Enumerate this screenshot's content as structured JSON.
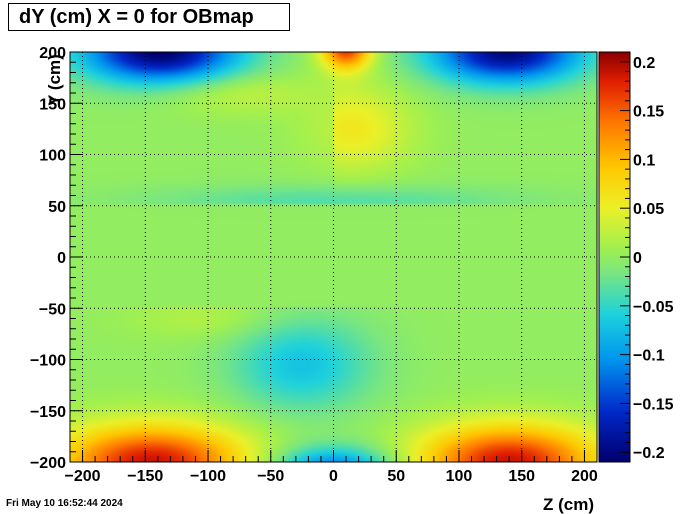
{
  "chart_data": {
    "type": "heatmap",
    "title": "dY (cm) X = 0 for OBmap",
    "xlabel": "Z (cm)",
    "ylabel": "Y (cm)",
    "xlim": [
      -210,
      210
    ],
    "ylim": [
      -200,
      200
    ],
    "x_ticks": [
      -200,
      -150,
      -100,
      -50,
      0,
      50,
      100,
      150,
      200
    ],
    "y_ticks": [
      -200,
      -150,
      -100,
      -50,
      0,
      50,
      100,
      150,
      200
    ],
    "zlim": [
      -0.21,
      0.21
    ],
    "z_ticks": [
      -0.2,
      -0.15,
      -0.1,
      -0.05,
      0,
      0.05,
      0.1,
      0.15,
      0.2
    ],
    "z_tick_labels": [
      "−0.2",
      "−0.15",
      "−0.1",
      "−0.05",
      "0",
      "0.05",
      "0.1",
      "0.15",
      "0.2"
    ],
    "x_tick_labels": [
      "−200",
      "−150",
      "−100",
      "−50",
      "0",
      "50",
      "100",
      "150",
      "200"
    ],
    "y_tick_labels": [
      "−200",
      "−150",
      "−100",
      "−50",
      "0",
      "50",
      "100",
      "150",
      "200"
    ],
    "grid": true,
    "colormap": "rainbow",
    "features": [
      {
        "z": -140,
        "y": 190,
        "value": -0.2
      },
      {
        "z": 140,
        "y": 190,
        "value": -0.19
      },
      {
        "z": 0,
        "y": 195,
        "value": 0.2
      },
      {
        "z": 15,
        "y": 120,
        "value": 0.07
      },
      {
        "z": -140,
        "y": -185,
        "value": 0.17
      },
      {
        "z": 140,
        "y": -185,
        "value": 0.17
      },
      {
        "z": 0,
        "y": -195,
        "value": -0.12
      },
      {
        "z": -20,
        "y": -110,
        "value": -0.07
      },
      {
        "z": 0,
        "y": 60,
        "value": -0.02
      }
    ]
  },
  "footer": {
    "timestamp": "Fri May 10 16:52:44 2024"
  }
}
